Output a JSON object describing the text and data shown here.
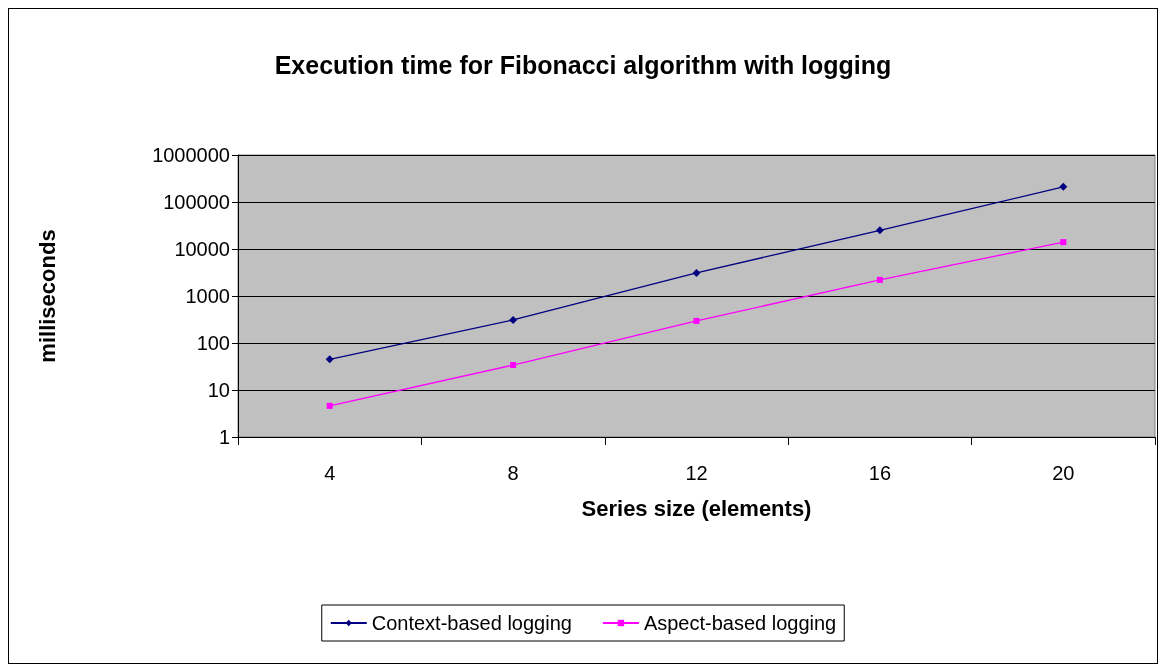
{
  "chart_data": {
    "type": "line",
    "title": "Execution time for Fibonacci algorithm with logging",
    "xlabel": "Series size (elements)",
    "ylabel": "milliseconds",
    "categories": [
      "4",
      "8",
      "12",
      "16",
      "20"
    ],
    "series": [
      {
        "name": "Context-based logging",
        "color": "#000080",
        "marker": "diamond",
        "values": [
          45,
          310,
          3100,
          25000,
          210000
        ]
      },
      {
        "name": "Aspect-based logging",
        "color": "#ff00ff",
        "marker": "square",
        "values": [
          4.6,
          34,
          295,
          2200,
          14000
        ]
      }
    ],
    "log": "y",
    "ylim": [
      1,
      1000000
    ],
    "yticks": [
      1,
      10,
      100,
      1000,
      10000,
      100000,
      1000000
    ],
    "grid": "y",
    "legend": "bottom"
  }
}
